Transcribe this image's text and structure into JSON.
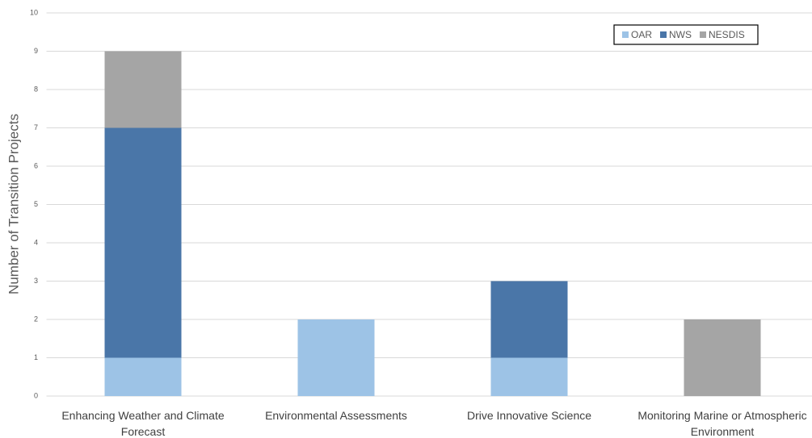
{
  "chart_data": {
    "type": "stacked_bar",
    "y_label": "Number of Transition Projects",
    "categories": [
      "Enhancing Weather and Climate Forecast",
      "Environmental Assessments",
      "Drive Innovative Science",
      "Monitoring Marine or Atmospheric Environment"
    ],
    "series": [
      {
        "name": "OAR",
        "color": "#9dc3e6",
        "values": [
          1,
          2,
          1,
          0
        ]
      },
      {
        "name": "NWS",
        "color": "#4a76a8",
        "values": [
          6,
          0,
          2,
          0
        ]
      },
      {
        "name": "NESDIS",
        "color": "#a5a5a5",
        "values": [
          2,
          0,
          0,
          2
        ]
      }
    ],
    "ylim": [
      0,
      10
    ],
    "yticks": [
      0,
      1,
      2,
      3,
      4,
      5,
      6,
      7,
      8,
      9,
      10
    ],
    "grid": true,
    "legend": "upper right"
  }
}
